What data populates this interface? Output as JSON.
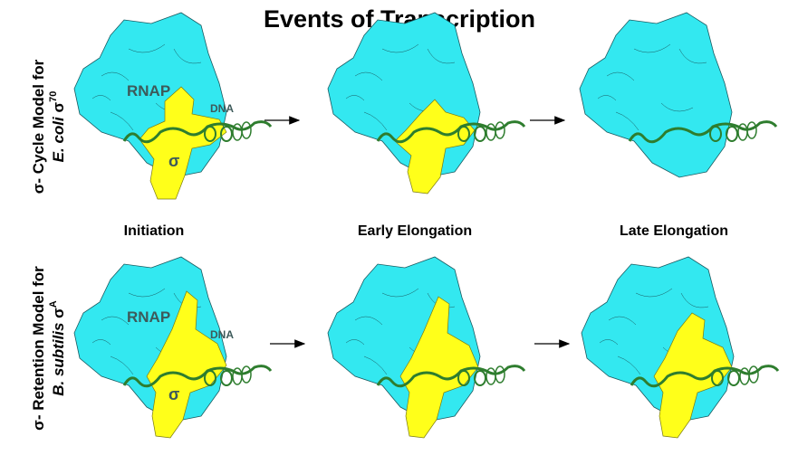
{
  "title": "Events of Transcription",
  "stages": [
    "Initiation",
    "Early Elongation",
    "Late Elongation"
  ],
  "rows": [
    {
      "line1": "σ- Cycle Model for",
      "line2_italic": "E. coli",
      "line2_sigma": " σ",
      "superscript": "70"
    },
    {
      "line1": "σ- Retention Model for",
      "line2_italic": "B. subtilis",
      "line2_sigma": " σ",
      "superscript": "A"
    }
  ],
  "structure_labels": {
    "rnap": "RNAP",
    "dna": "DNA",
    "sigma": "σ"
  },
  "colors": {
    "rnap": "#33e8f0",
    "sigma": "#ffff1a",
    "dna": "#2e7d2e",
    "labels": "#3d5a5a"
  }
}
